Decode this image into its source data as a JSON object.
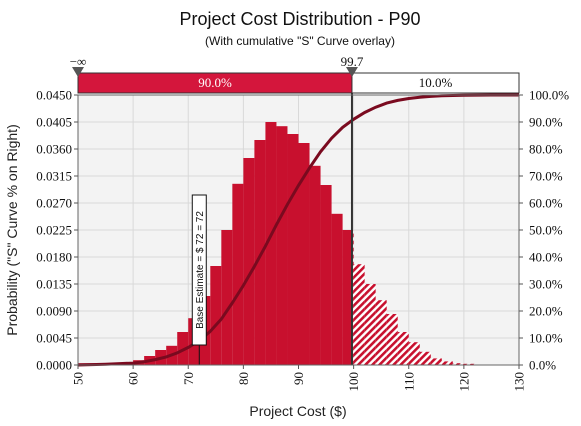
{
  "chart_data": {
    "type": "bar",
    "title": "Project Cost Distribution - P90",
    "subtitle": "(With cumulative \"S\" Curve overlay)",
    "xlabel": "Project Cost ($)",
    "ylabel": "Probability (\"S\" Curve % on Right)",
    "xlim": [
      50,
      130
    ],
    "ylim": [
      0,
      0.045
    ],
    "y2lim": [
      0,
      100
    ],
    "x_ticks": [
      "50",
      "60",
      "70",
      "80",
      "90",
      "100",
      "110",
      "120",
      "130"
    ],
    "y_ticks": [
      "0.0000",
      "0.0045",
      "0.0090",
      "0.0135",
      "0.0180",
      "0.0225",
      "0.0270",
      "0.0315",
      "0.0360",
      "0.0405",
      "0.0450"
    ],
    "y2_ticks": [
      "0.0%",
      "10.0%",
      "20.0%",
      "30.0%",
      "40.0%",
      "50.0%",
      "60.0%",
      "70.0%",
      "80.0%",
      "90.0%",
      "100.0%"
    ],
    "bin_width": 2,
    "bins": [
      {
        "x": 50,
        "value": 0.0003
      },
      {
        "x": 52,
        "value": 0.0003
      },
      {
        "x": 54,
        "value": 0.0003
      },
      {
        "x": 56,
        "value": 0.0004
      },
      {
        "x": 58,
        "value": 0.0004
      },
      {
        "x": 60,
        "value": 0.0008
      },
      {
        "x": 62,
        "value": 0.0015
      },
      {
        "x": 64,
        "value": 0.0025
      },
      {
        "x": 66,
        "value": 0.0032
      },
      {
        "x": 68,
        "value": 0.0055
      },
      {
        "x": 70,
        "value": 0.0078
      },
      {
        "x": 72,
        "value": 0.0115
      },
      {
        "x": 74,
        "value": 0.0165
      },
      {
        "x": 76,
        "value": 0.0225
      },
      {
        "x": 78,
        "value": 0.0302
      },
      {
        "x": 80,
        "value": 0.0345
      },
      {
        "x": 82,
        "value": 0.0375
      },
      {
        "x": 84,
        "value": 0.0405
      },
      {
        "x": 86,
        "value": 0.0398
      },
      {
        "x": 88,
        "value": 0.0385
      },
      {
        "x": 90,
        "value": 0.037
      },
      {
        "x": 92,
        "value": 0.0332
      },
      {
        "x": 94,
        "value": 0.03
      },
      {
        "x": 96,
        "value": 0.0252
      },
      {
        "x": 98,
        "value": 0.0225
      },
      {
        "x": 100,
        "value": 0.0168
      },
      {
        "x": 102,
        "value": 0.0135
      },
      {
        "x": 104,
        "value": 0.0108
      },
      {
        "x": 106,
        "value": 0.0085
      },
      {
        "x": 108,
        "value": 0.0055
      },
      {
        "x": 110,
        "value": 0.0038
      },
      {
        "x": 112,
        "value": 0.0022
      },
      {
        "x": 114,
        "value": 0.0011
      },
      {
        "x": 116,
        "value": 0.0006
      },
      {
        "x": 118,
        "value": 0.0003
      },
      {
        "x": 120,
        "value": 0.0002
      }
    ],
    "s_curve": {
      "x": [
        50,
        55,
        60,
        62,
        64,
        66,
        68,
        70,
        72,
        74,
        76,
        78,
        80,
        82,
        84,
        86,
        88,
        90,
        92,
        94,
        96,
        98,
        100,
        102,
        104,
        106,
        108,
        110,
        112,
        114,
        116,
        118,
        120,
        125,
        130
      ],
      "y": [
        0,
        0.3,
        0.7,
        1.2,
        2,
        3,
        4.5,
        6.5,
        9,
        12.5,
        17,
        23,
        29.5,
        36.5,
        44,
        52,
        59.5,
        66.5,
        73,
        79,
        84,
        88,
        91,
        93.5,
        95.5,
        97,
        98,
        98.7,
        99.2,
        99.5,
        99.7,
        99.8,
        99.9,
        100,
        100
      ]
    },
    "threshold": {
      "value": 99.7,
      "label": "99.7"
    },
    "left_marker_label": "−∞",
    "bands": [
      {
        "label": "90.0%",
        "color": "#d4163c"
      },
      {
        "label": "10.0%",
        "color": "#ffffff"
      }
    ],
    "base_estimate": {
      "value": 72,
      "label": "Base Estimate = $ 72 = 72"
    },
    "colors": {
      "bar": "#c8102e",
      "bar_light": "#e23a55",
      "curve": "#7a0a1f",
      "plot_bg": "#f3f3f3",
      "grid": "#d9d9d9"
    }
  }
}
